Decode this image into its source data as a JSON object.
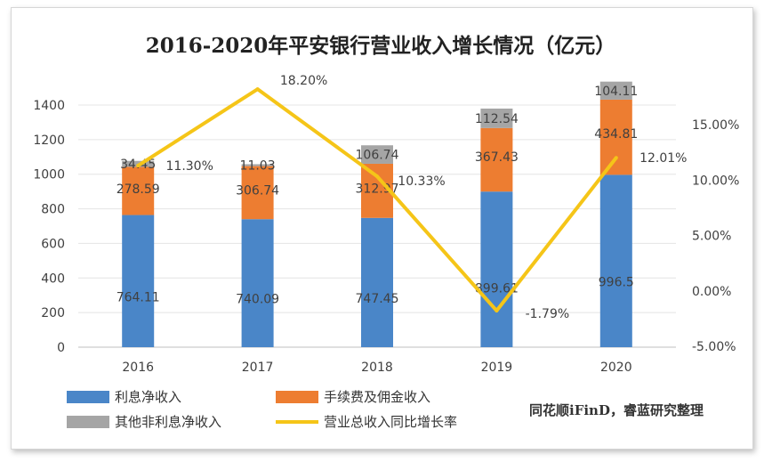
{
  "chart_data": {
    "type": "bar",
    "stacked": true,
    "title": "2016-2020年平安银行营业收入增长情况（亿元）",
    "categories": [
      "2016",
      "2017",
      "2018",
      "2019",
      "2020"
    ],
    "series": [
      {
        "name": "利息净收入",
        "values": [
          764.11,
          740.09,
          747.45,
          899.61,
          996.5
        ],
        "labels": [
          "764.11",
          "740.09",
          "747.45",
          "899.61",
          "996.5"
        ],
        "color": "#4a86c8"
      },
      {
        "name": "手续费及佣金收入",
        "values": [
          278.59,
          306.74,
          312.97,
          367.43,
          434.81
        ],
        "labels": [
          "278.59",
          "306.74",
          "312.97",
          "367.43",
          "434.81"
        ],
        "color": "#ed7d31"
      },
      {
        "name": "其他非利息净收入",
        "values": [
          34.45,
          11.03,
          106.74,
          112.54,
          104.11
        ],
        "labels": [
          "34.45",
          "11.03",
          "106.74",
          "112.54",
          "104.11"
        ],
        "color": "#a5a5a5"
      }
    ],
    "line_series": {
      "name": "营业总收入同比增长率",
      "values": [
        11.3,
        18.2,
        10.33,
        -1.79,
        12.01
      ],
      "labels": [
        "11.30%",
        "18.20%",
        "10.33%",
        "-1.79%",
        "12.01%"
      ],
      "color": "#f5c518",
      "axis": "right"
    },
    "ylim": [
      0,
      1400
    ],
    "y_ticks": [
      "0",
      "200",
      "400",
      "600",
      "800",
      "1000",
      "1200",
      "1400"
    ],
    "y2lim": [
      -5,
      15
    ],
    "y2_ticks": [
      "-5.00%",
      "0.00%",
      "5.00%",
      "10.00%",
      "15.00%"
    ],
    "grid": true,
    "legend_position": "bottom"
  },
  "source_note": "同花顺iFinD，睿蓝研究整理"
}
